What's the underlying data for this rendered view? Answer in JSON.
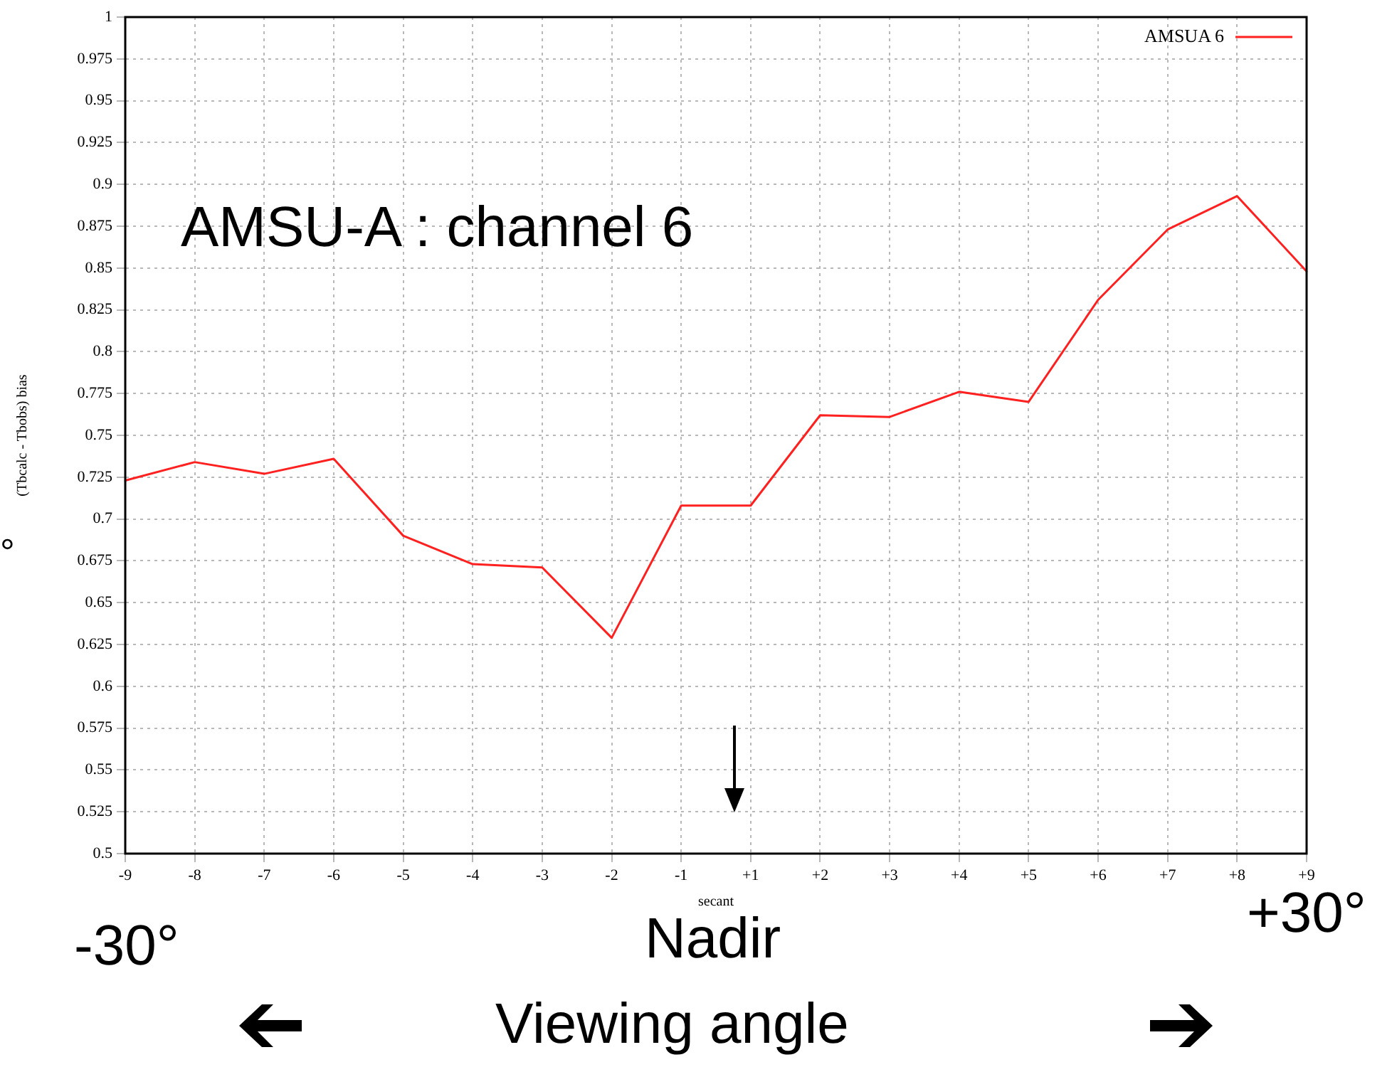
{
  "chart_data": {
    "type": "line",
    "title": "AMSU-A : channel 6",
    "xlabel": "secant",
    "ylabel": "(Tbcalc - Tbobs) bias",
    "categories": [
      "-9",
      "-8",
      "-7",
      "-6",
      "-5",
      "-4",
      "-3",
      "-2",
      "-1",
      "+1",
      "+2",
      "+3",
      "+4",
      "+5",
      "+6",
      "+7",
      "+8",
      "+9"
    ],
    "series": [
      {
        "name": "AMSUA 6",
        "color": "#ff2020",
        "values": [
          0.723,
          0.734,
          0.727,
          0.736,
          0.69,
          0.673,
          0.671,
          0.629,
          0.708,
          0.708,
          0.762,
          0.761,
          0.776,
          0.77,
          0.831,
          0.873,
          0.893,
          0.848
        ]
      }
    ],
    "ylim": [
      0.5,
      1
    ],
    "yticks": [
      0.5,
      0.525,
      0.55,
      0.575,
      0.6,
      0.625,
      0.65,
      0.675,
      0.7,
      0.725,
      0.75,
      0.775,
      0.8,
      0.825,
      0.85,
      0.875,
      0.9,
      0.925,
      0.95,
      0.975,
      1
    ],
    "grid": true,
    "legend": "top right",
    "marker": "none",
    "line_style": "solid",
    "annotations": [
      "-30°",
      "Nadir",
      "+30°",
      "Viewing angle",
      "°"
    ]
  }
}
